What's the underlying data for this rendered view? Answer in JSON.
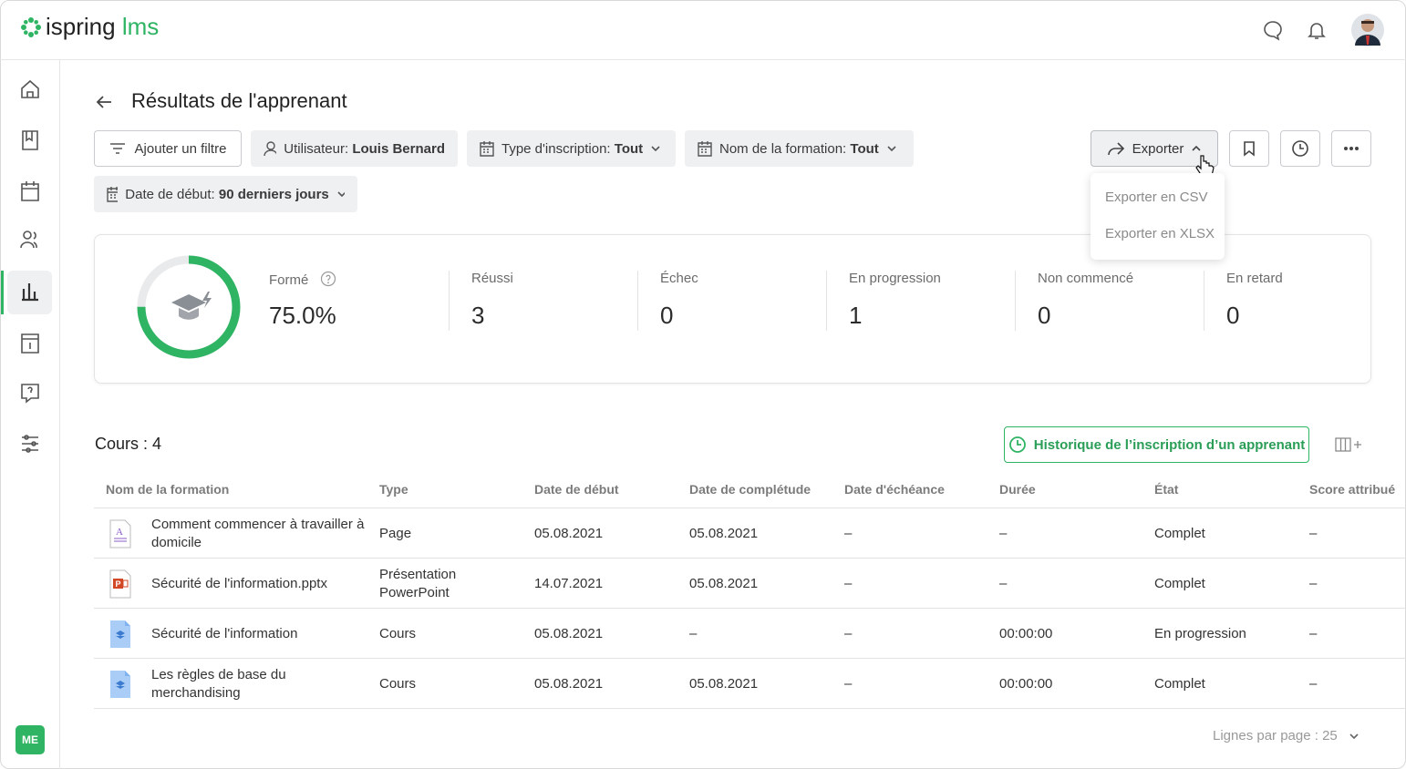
{
  "header": {
    "logo_brand": "ispring",
    "logo_product": "lms"
  },
  "sidebar": {
    "user_initials": "ME"
  },
  "page": {
    "title": "Résultats de l'apprenant"
  },
  "filters": {
    "add_filter": "Ajouter un filtre",
    "chips": [
      {
        "label": "Utilisateur:",
        "value": "Louis Bernard"
      },
      {
        "label": "Type d'inscription:",
        "value": "Tout"
      },
      {
        "label": "Nom de la formation:",
        "value": "Tout"
      },
      {
        "label": "Date de début:",
        "value": "90 derniers jours"
      }
    ]
  },
  "export": {
    "button": "Exporter",
    "options": [
      "Exporter en CSV",
      "Exporter en XLSX"
    ]
  },
  "summary": {
    "trained": {
      "label": "Formé",
      "value": 75,
      "value_label": "75.0%"
    },
    "stats": [
      {
        "label": "Réussi",
        "value": 3
      },
      {
        "label": "Échec",
        "value": 0
      },
      {
        "label": "En progression",
        "value": 1
      },
      {
        "label": "Non commencé",
        "value": 0
      },
      {
        "label": "En retard",
        "value": 0
      }
    ]
  },
  "courses": {
    "count_label": "Cours : 4",
    "history_button": "Historique de l’inscription d’un apprenant",
    "columns": [
      "Nom de la formation",
      "Type",
      "Date de début",
      "Date de complétude",
      "Date d'échéance",
      "Durée",
      "État",
      "Score attribué"
    ],
    "rows": [
      [
        "Comment commencer à travailler à domicile",
        "Page",
        "05.08.2021",
        "05.08.2021",
        "–",
        "–",
        "Complet",
        "–"
      ],
      [
        "Sécurité de l'information.pptx",
        "Présentation PowerPoint",
        "14.07.2021",
        "05.08.2021",
        "–",
        "–",
        "Complet",
        "–"
      ],
      [
        "Sécurité de l'information",
        "Cours",
        "05.08.2021",
        "–",
        "–",
        "00:00:00",
        "En progression",
        "–"
      ],
      [
        "Les règles de base du merchandising",
        "Cours",
        "05.08.2021",
        "05.08.2021",
        "–",
        "00:00:00",
        "Complet",
        "–"
      ]
    ]
  },
  "pagination": {
    "rows_per_page": "Lignes par page : 25"
  }
}
